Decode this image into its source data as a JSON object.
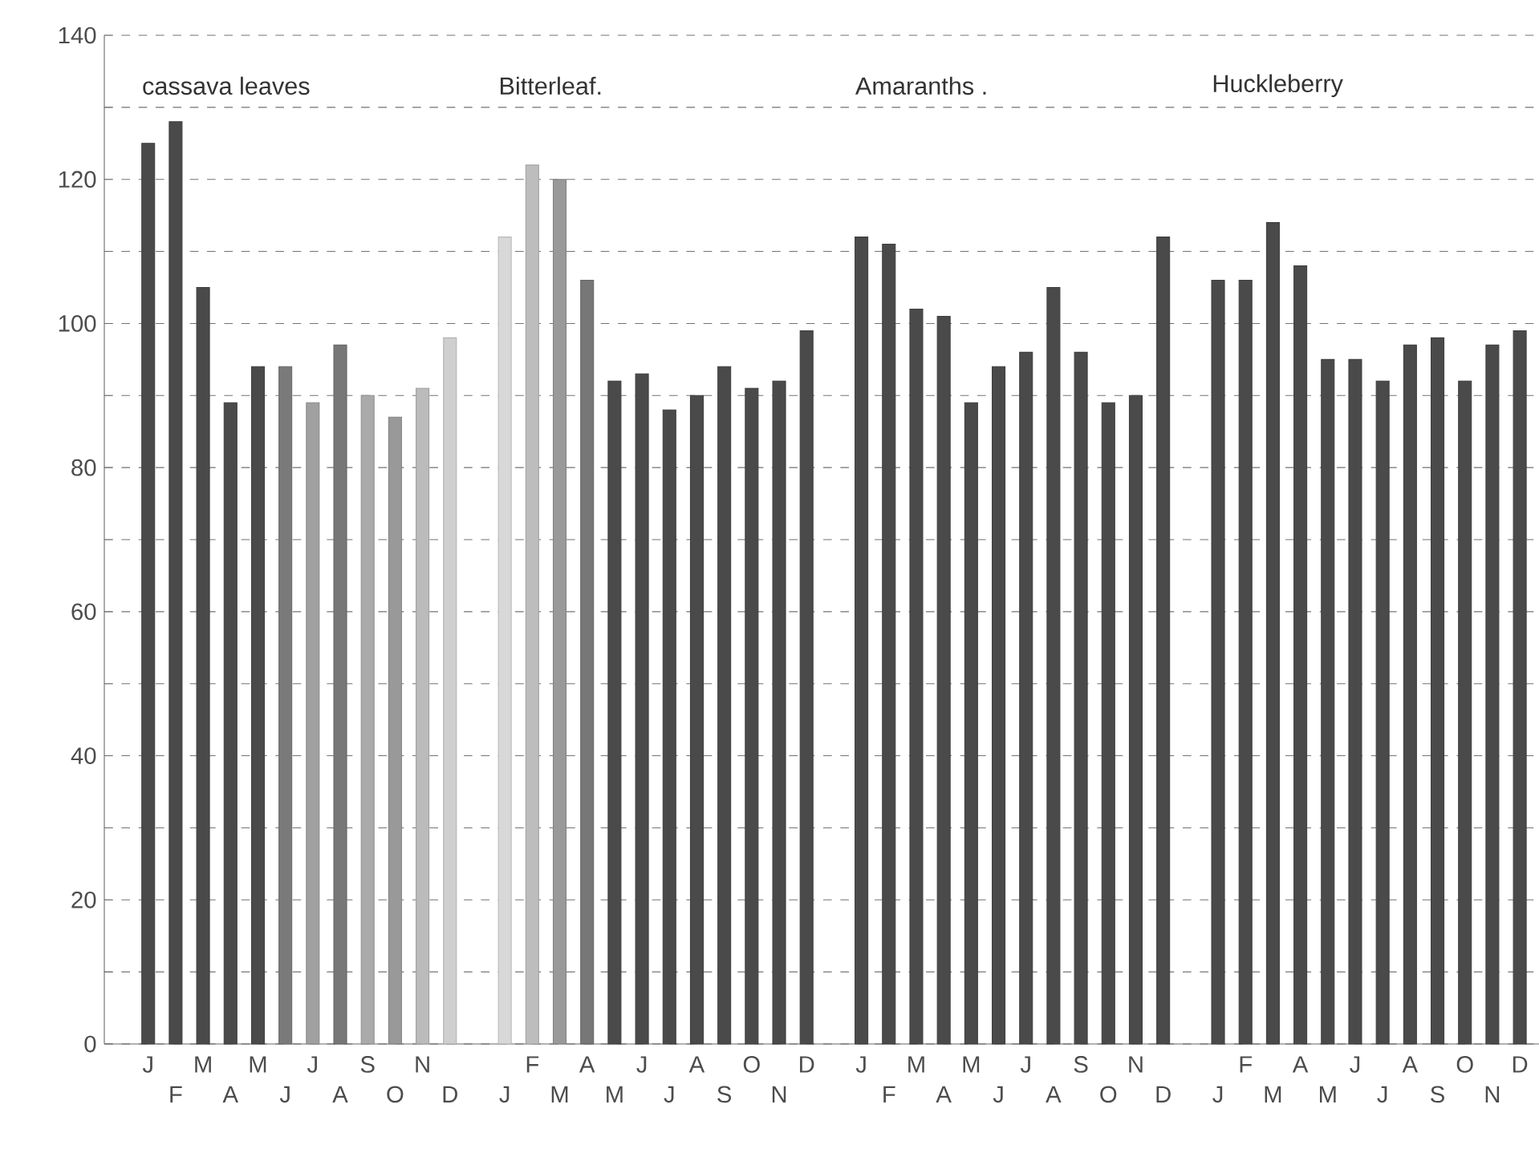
{
  "chart_data": {
    "type": "bar",
    "categories": [
      "J",
      "F",
      "M",
      "A",
      "M",
      "J",
      "J",
      "A",
      "S",
      "O",
      "N",
      "D",
      null,
      "J",
      "F",
      "M",
      "A",
      "M",
      "J",
      "J",
      "A",
      "S",
      "O",
      "N",
      "D",
      null,
      "J",
      "F",
      "M",
      "A",
      "M",
      "J",
      "J",
      "A",
      "S",
      "O",
      "N",
      "D",
      null,
      "J",
      "F",
      "M",
      "A",
      "M",
      "J",
      "J",
      "A",
      "S",
      "O",
      "N",
      "D"
    ],
    "values": [
      125,
      128,
      105,
      89,
      94,
      94,
      89,
      97,
      90,
      87,
      91,
      98,
      null,
      112,
      122,
      120,
      106,
      92,
      93,
      88,
      90,
      94,
      91,
      92,
      99,
      null,
      112,
      111,
      102,
      101,
      89,
      94,
      96,
      105,
      96,
      89,
      90,
      112,
      null,
      106,
      106,
      114,
      108,
      95,
      95,
      92,
      97,
      98,
      92,
      97,
      99
    ],
    "colors": [
      "#4a4a4a",
      "#4a4a4a",
      "#4a4a4a",
      "#4a4a4a",
      "#4a4a4a",
      "#7a7a7a",
      "#a0a0a0",
      "#777777",
      "#aaaaaa",
      "#999999",
      "#bbbbbb",
      "#cfcfcf",
      null,
      "#d8d8d8",
      "#bdbdbd",
      "#999999",
      "#777777",
      "#4a4a4a",
      "#4a4a4a",
      "#4a4a4a",
      "#4a4a4a",
      "#4a4a4a",
      "#4a4a4a",
      "#4a4a4a",
      "#4a4a4a",
      null,
      "#4a4a4a",
      "#4a4a4a",
      "#4a4a4a",
      "#4a4a4a",
      "#4a4a4a",
      "#4a4a4a",
      "#4a4a4a",
      "#4a4a4a",
      "#4a4a4a",
      "#4a4a4a",
      "#4a4a4a",
      "#4a4a4a",
      null,
      "#4a4a4a",
      "#4a4a4a",
      "#4a4a4a",
      "#4a4a4a",
      "#4a4a4a",
      "#4a4a4a",
      "#4a4a4a",
      "#4a4a4a",
      "#4a4a4a",
      "#4a4a4a",
      "#4a4a4a",
      "#4a4a4a"
    ],
    "annotations": [
      "cassava leaves",
      "Bitterleaf.",
      "Amaranths .",
      "Huckleberry"
    ],
    "ylim": [
      0,
      140
    ],
    "yticks": [
      0,
      {
        "value": 10,
        "label": null
      },
      20,
      {
        "value": 30,
        "label": null
      },
      40,
      {
        "value": 50,
        "label": null
      },
      60,
      {
        "value": 70,
        "label": null
      },
      80,
      {
        "value": 90,
        "label": null
      },
      100,
      {
        "value": 110,
        "label": null
      },
      120,
      {
        "value": 130,
        "label": null
      },
      140
    ],
    "grid": "y"
  }
}
